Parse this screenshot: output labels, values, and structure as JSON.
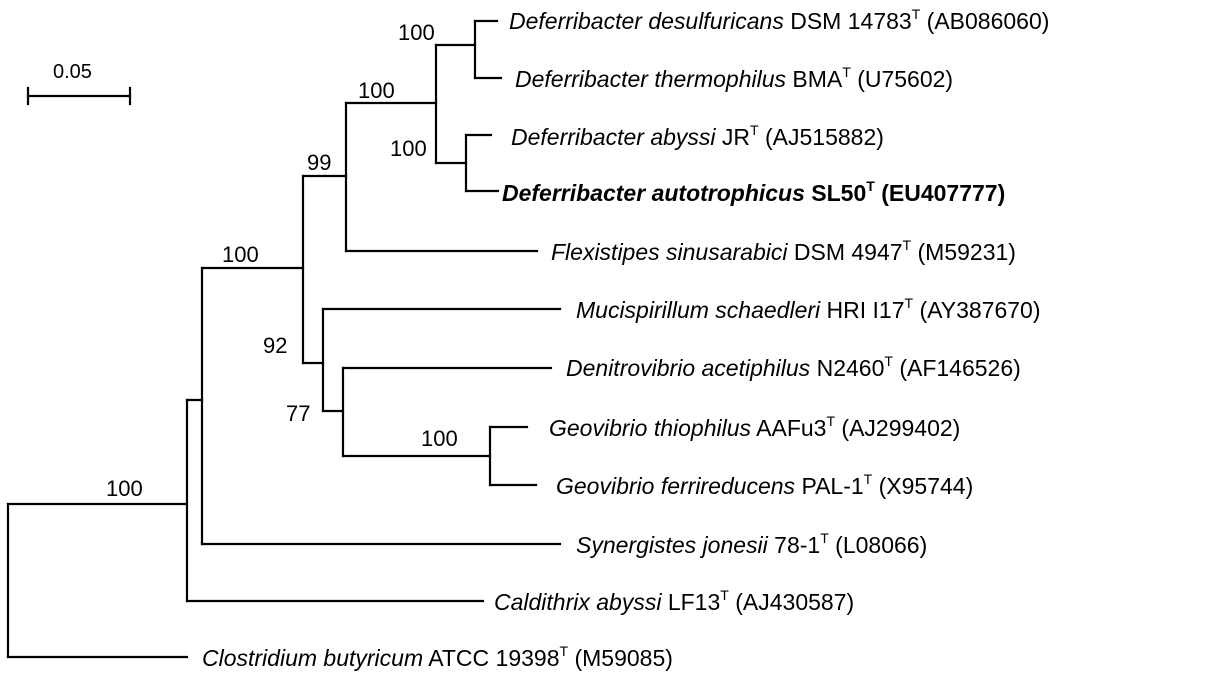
{
  "scale_bar": {
    "label": "0.05"
  },
  "taxa": [
    {
      "id": "dds",
      "name": "Deferribacter desulfuricans",
      "strain": "DSM 14783",
      "type_mark": "T",
      "accession": "(AB086060)",
      "bold": false
    },
    {
      "id": "dth",
      "name": "Deferribacter thermophilus",
      "strain": "BMA",
      "type_mark": "T",
      "accession": "(U75602)",
      "bold": false
    },
    {
      "id": "dab",
      "name": "Deferribacter abyssi",
      "strain": "JR",
      "type_mark": "T",
      "accession": "(AJ515882)",
      "bold": false
    },
    {
      "id": "dau",
      "name": "Deferribacter autotrophicus",
      "strain": "SL50",
      "type_mark": "T",
      "accession": "(EU407777)",
      "bold": true
    },
    {
      "id": "fsi",
      "name": "Flexistipes sinusarabici",
      "strain": "DSM 4947",
      "type_mark": "T",
      "accession": "(M59231)",
      "bold": false
    },
    {
      "id": "msc",
      "name": "Mucispirillum schaedleri",
      "strain": "HRI I17",
      "type_mark": "T",
      "accession": "(AY387670)",
      "bold": false
    },
    {
      "id": "dac",
      "name": "Denitrovibrio acetiphilus",
      "strain": "N2460",
      "type_mark": "T",
      "accession": "(AF146526)",
      "bold": false
    },
    {
      "id": "gth",
      "name": "Geovibrio thiophilus",
      "strain": "AAFu3",
      "type_mark": "T",
      "accession": "(AJ299402)",
      "bold": false
    },
    {
      "id": "gfe",
      "name": "Geovibrio ferrireducens",
      "strain": "PAL-1",
      "type_mark": "T",
      "accession": "(X95744)",
      "bold": false
    },
    {
      "id": "sjo",
      "name": "Synergistes jonesii",
      "strain": "78-1",
      "type_mark": "T",
      "accession": "(L08066)",
      "bold": false
    },
    {
      "id": "cab",
      "name": "Caldithrix abyssi",
      "strain": "LF13",
      "type_mark": "T",
      "accession": "(AJ430587)",
      "bold": false
    },
    {
      "id": "cbu",
      "name": "Clostridium butyricum",
      "strain": "ATCC 19398",
      "type_mark": "T",
      "accession": "(M59085)",
      "bold": false
    }
  ],
  "bootstrap_values": [
    {
      "node": "dds-dth",
      "value": "100"
    },
    {
      "node": "deferribacter",
      "value": "100"
    },
    {
      "node": "dab-dau",
      "value": "100"
    },
    {
      "node": "deferribacter-flexistipes",
      "value": "99"
    },
    {
      "node": "upper-clade",
      "value": "100"
    },
    {
      "node": "mucispirillum-group",
      "value": "92"
    },
    {
      "node": "denitrovibrio-geovibrio",
      "value": "77"
    },
    {
      "node": "geovibrio",
      "value": "100"
    },
    {
      "node": "ingroup",
      "value": "100"
    }
  ]
}
